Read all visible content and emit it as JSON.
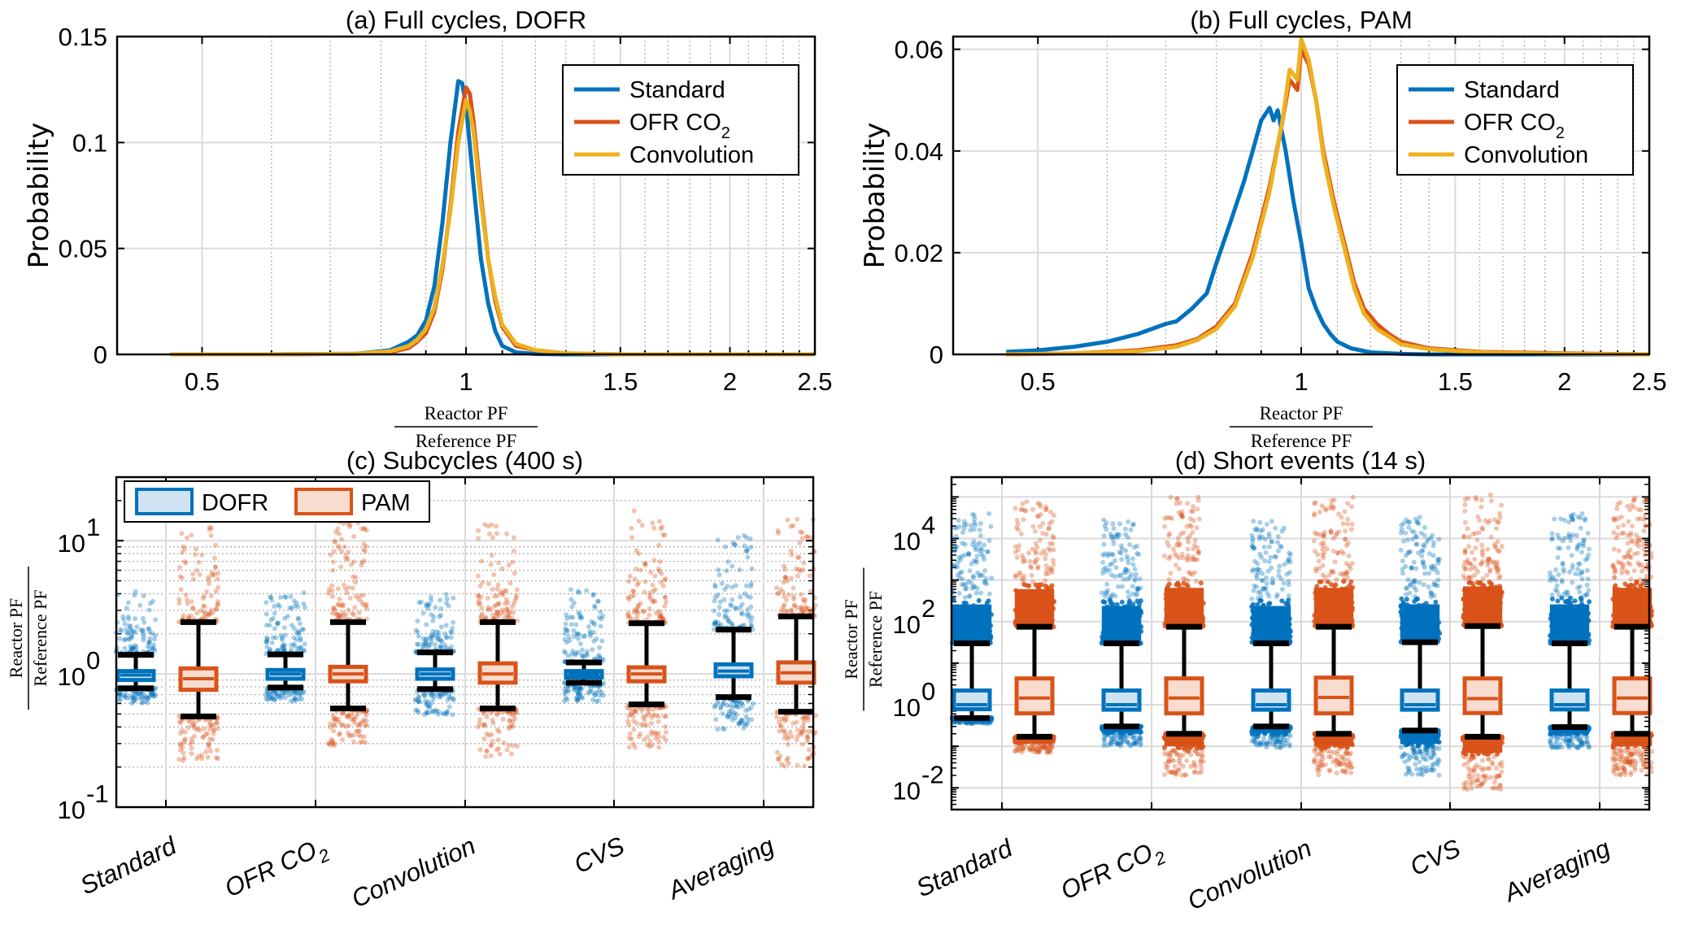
{
  "colors": {
    "blue": "#0072BD",
    "orange": "#D95319",
    "yellow": "#EDB120",
    "blue_fill": "#CFE3F3",
    "orange_fill": "#F8DCCF",
    "grid": "#DADADA",
    "minor_grid": "#B0B0B0"
  },
  "chart_data": [
    {
      "id": "a",
      "type": "line",
      "title": "(a) Full cycles, DOFR",
      "xlabel_numerator": "Reactor  PF",
      "xlabel_denominator": "Reference  PF",
      "ylabel": "Probability",
      "xscale": "log",
      "xlim": [
        0.4,
        2.5
      ],
      "ylim": [
        0,
        0.15
      ],
      "xticks": [
        0.5,
        1,
        1.5,
        2,
        2.5
      ],
      "xtick_labels": [
        "0.5",
        "1",
        "1.5",
        "2",
        "2.5"
      ],
      "yticks": [
        0,
        0.05,
        0.1,
        0.15
      ],
      "ytick_labels": [
        "0",
        "0.05",
        "0.1",
        "0.15"
      ],
      "grid": true,
      "legend": {
        "position": "top-right",
        "entries": [
          "Standard",
          "OFR CO2",
          "Convolution"
        ]
      },
      "series": [
        {
          "name": "Standard",
          "color_key": "blue",
          "x": [
            0.46,
            0.6,
            0.75,
            0.82,
            0.86,
            0.88,
            0.9,
            0.92,
            0.94,
            0.96,
            0.98,
            0.99,
            1.0,
            1.02,
            1.04,
            1.06,
            1.08,
            1.1,
            1.14,
            1.2,
            1.3,
            1.5,
            2.0,
            2.5
          ],
          "y": [
            0,
            0,
            0.0003,
            0.002,
            0.006,
            0.009,
            0.016,
            0.032,
            0.062,
            0.1,
            0.129,
            0.128,
            0.118,
            0.08,
            0.045,
            0.024,
            0.011,
            0.004,
            0.001,
            0.0002,
            0,
            0,
            0,
            0
          ]
        },
        {
          "name": "OFR CO2",
          "color_key": "orange",
          "x": [
            0.46,
            0.6,
            0.75,
            0.82,
            0.86,
            0.88,
            0.9,
            0.92,
            0.94,
            0.96,
            0.98,
            1.0,
            1.01,
            1.02,
            1.04,
            1.06,
            1.08,
            1.1,
            1.14,
            1.2,
            1.3,
            1.5,
            2.0,
            2.5
          ],
          "y": [
            0,
            0,
            0.0003,
            0.001,
            0.003,
            0.006,
            0.01,
            0.02,
            0.04,
            0.07,
            0.105,
            0.126,
            0.123,
            0.11,
            0.075,
            0.045,
            0.025,
            0.013,
            0.004,
            0.002,
            0.0005,
            0,
            0,
            0
          ]
        },
        {
          "name": "Convolution",
          "color_key": "yellow",
          "x": [
            0.46,
            0.6,
            0.75,
            0.82,
            0.86,
            0.88,
            0.9,
            0.92,
            0.94,
            0.96,
            0.98,
            1.0,
            1.01,
            1.02,
            1.04,
            1.06,
            1.08,
            1.1,
            1.14,
            1.2,
            1.3,
            1.5,
            2.0,
            2.5
          ],
          "y": [
            0,
            0,
            0.0003,
            0.0015,
            0.004,
            0.007,
            0.012,
            0.022,
            0.042,
            0.068,
            0.1,
            0.12,
            0.115,
            0.105,
            0.072,
            0.045,
            0.027,
            0.014,
            0.005,
            0.002,
            0.0005,
            0,
            0,
            0
          ]
        }
      ]
    },
    {
      "id": "b",
      "type": "line",
      "title": "(b) Full cycles, PAM",
      "xlabel_numerator": "Reactor  PF",
      "xlabel_denominator": "Reference  PF",
      "ylabel": "Probability",
      "xscale": "log",
      "xlim": [
        0.4,
        2.5
      ],
      "ylim": [
        0,
        0.0625
      ],
      "xticks": [
        0.5,
        1,
        1.5,
        2,
        2.5
      ],
      "xtick_labels": [
        "0.5",
        "1",
        "1.5",
        "2",
        "2.5"
      ],
      "yticks": [
        0,
        0.02,
        0.04,
        0.06
      ],
      "ytick_labels": [
        "0",
        "0.02",
        "0.04",
        "0.06"
      ],
      "grid": true,
      "legend": {
        "position": "top-right",
        "entries": [
          "Standard",
          "OFR CO2",
          "Convolution"
        ]
      },
      "series": [
        {
          "name": "Standard",
          "color_key": "blue",
          "x": [
            0.46,
            0.5,
            0.55,
            0.6,
            0.65,
            0.7,
            0.72,
            0.75,
            0.78,
            0.8,
            0.83,
            0.86,
            0.88,
            0.9,
            0.92,
            0.93,
            0.94,
            0.96,
            0.98,
            1.0,
            1.02,
            1.04,
            1.06,
            1.08,
            1.1,
            1.14,
            1.2,
            1.3,
            1.4,
            1.6,
            2.0,
            2.5
          ],
          "y": [
            0.0005,
            0.0008,
            0.0015,
            0.0025,
            0.004,
            0.006,
            0.0065,
            0.009,
            0.012,
            0.018,
            0.026,
            0.034,
            0.04,
            0.046,
            0.0485,
            0.046,
            0.048,
            0.04,
            0.03,
            0.022,
            0.013,
            0.009,
            0.006,
            0.004,
            0.0025,
            0.0012,
            0.0004,
            0.0001,
            0,
            0,
            0,
            0
          ]
        },
        {
          "name": "OFR CO2",
          "color_key": "orange",
          "x": [
            0.46,
            0.55,
            0.65,
            0.72,
            0.76,
            0.8,
            0.84,
            0.88,
            0.92,
            0.95,
            0.97,
            0.99,
            1.0,
            1.02,
            1.04,
            1.06,
            1.09,
            1.12,
            1.15,
            1.18,
            1.22,
            1.26,
            1.3,
            1.4,
            1.6,
            2.0,
            2.5
          ],
          "y": [
            0,
            0.0002,
            0.0008,
            0.0018,
            0.003,
            0.0055,
            0.01,
            0.02,
            0.033,
            0.045,
            0.054,
            0.052,
            0.06,
            0.057,
            0.05,
            0.04,
            0.03,
            0.022,
            0.014,
            0.009,
            0.006,
            0.004,
            0.0025,
            0.0012,
            0.0005,
            0.0002,
            0
          ]
        },
        {
          "name": "Convolution",
          "color_key": "yellow",
          "x": [
            0.46,
            0.55,
            0.65,
            0.72,
            0.76,
            0.8,
            0.84,
            0.88,
            0.92,
            0.95,
            0.97,
            0.99,
            1.0,
            1.02,
            1.04,
            1.06,
            1.09,
            1.12,
            1.15,
            1.18,
            1.22,
            1.26,
            1.3,
            1.4,
            1.6,
            2.0,
            2.5
          ],
          "y": [
            0,
            0.0002,
            0.0006,
            0.0015,
            0.0028,
            0.005,
            0.0095,
            0.019,
            0.032,
            0.045,
            0.056,
            0.054,
            0.062,
            0.058,
            0.05,
            0.039,
            0.029,
            0.021,
            0.013,
            0.008,
            0.005,
            0.0035,
            0.002,
            0.001,
            0.0004,
            0.0001,
            0
          ]
        }
      ]
    },
    {
      "id": "c",
      "type": "box",
      "title": "(c) Subcycles (400 s)",
      "ylabel_numerator": "Reactor  PF",
      "ylabel_denominator": "Reference  PF",
      "yscale": "log",
      "ylim": [
        0.1,
        30
      ],
      "yticks": [
        0.1,
        1,
        10
      ],
      "ytick_labels": [
        "10",
        "10",
        "10"
      ],
      "ytick_exponents": [
        "-1",
        "0",
        "1"
      ],
      "categories": [
        "Standard",
        "OFR CO",
        "Convolution",
        "CVS",
        "Averaging"
      ],
      "category_subscripts": [
        "",
        "2",
        "",
        "",
        ""
      ],
      "legend": {
        "position": "top-left",
        "entries": [
          "DOFR",
          "PAM"
        ]
      },
      "series": [
        {
          "name": "DOFR",
          "color_key": "blue",
          "whisker_low": [
            0.78,
            0.79,
            0.77,
            0.86,
            0.67
          ],
          "q1": [
            0.9,
            0.92,
            0.92,
            0.94,
            0.96
          ],
          "median": [
            0.98,
            1.0,
            1.0,
            1.0,
            1.05
          ],
          "q3": [
            1.05,
            1.07,
            1.08,
            1.05,
            1.18
          ],
          "whisker_high": [
            1.39,
            1.4,
            1.45,
            1.22,
            2.15
          ],
          "outlier_high_max": [
            4.2,
            4.2,
            4.0,
            4.3,
            12.0
          ],
          "outlier_low_min": [
            0.6,
            0.62,
            0.48,
            0.62,
            0.38
          ]
        },
        {
          "name": "PAM",
          "color_key": "orange",
          "whisker_low": [
            0.48,
            0.55,
            0.55,
            0.59,
            0.52
          ],
          "q1": [
            0.76,
            0.88,
            0.86,
            0.88,
            0.86
          ],
          "median": [
            0.92,
            1.0,
            1.0,
            1.0,
            1.02
          ],
          "q3": [
            1.1,
            1.13,
            1.2,
            1.12,
            1.22
          ],
          "whisker_high": [
            2.45,
            2.45,
            2.45,
            2.4,
            2.7
          ],
          "outlier_high_max": [
            13.5,
            15.0,
            14.5,
            17.0,
            16.0
          ],
          "outlier_low_min": [
            0.22,
            0.29,
            0.23,
            0.28,
            0.2
          ]
        }
      ]
    },
    {
      "id": "d",
      "type": "box",
      "title": "(d) Short events (14 s)",
      "ylabel_numerator": "Reactor  PF",
      "ylabel_denominator": "Reference  PF",
      "yscale": "log",
      "ylim": [
        0.003,
        300000
      ],
      "yticks": [
        0.01,
        1,
        100,
        10000
      ],
      "ytick_labels": [
        "10",
        "10",
        "10",
        "10"
      ],
      "ytick_exponents": [
        "-2",
        "0",
        "2",
        "4"
      ],
      "categories": [
        "Standard",
        "OFR CO",
        "Convolution",
        "CVS",
        "Averaging"
      ],
      "category_subscripts": [
        "",
        "2",
        "",
        "",
        ""
      ],
      "series": [
        {
          "name": "DOFR",
          "color_key": "blue",
          "whisker_low": [
            0.48,
            0.3,
            0.3,
            0.24,
            0.29
          ],
          "q1": [
            0.78,
            0.76,
            0.76,
            0.76,
            0.77
          ],
          "median": [
            1.0,
            1.0,
            1.0,
            1.0,
            1.0
          ],
          "q3": [
            2.2,
            2.2,
            2.2,
            2.2,
            2.2
          ],
          "whisker_high": [
            30,
            30,
            30,
            32,
            30
          ],
          "outlier_high_max": [
            40000,
            30000,
            30000,
            35000,
            40000
          ],
          "outlier_low_min": [
            0.35,
            0.1,
            0.09,
            0.02,
            0.09
          ]
        },
        {
          "name": "PAM",
          "color_key": "orange",
          "whisker_low": [
            0.17,
            0.2,
            0.2,
            0.17,
            0.2
          ],
          "q1": [
            0.62,
            0.62,
            0.62,
            0.63,
            0.63
          ],
          "median": [
            1.45,
            1.45,
            1.5,
            1.4,
            1.45
          ],
          "q3": [
            4.3,
            4.3,
            4.5,
            4.3,
            4.3
          ],
          "whisker_high": [
            75,
            75,
            75,
            78,
            75
          ],
          "outlier_high_max": [
            80000,
            100000,
            100000,
            120000,
            100000
          ],
          "outlier_low_min": [
            0.07,
            0.02,
            0.02,
            0.009,
            0.02
          ]
        }
      ]
    }
  ]
}
